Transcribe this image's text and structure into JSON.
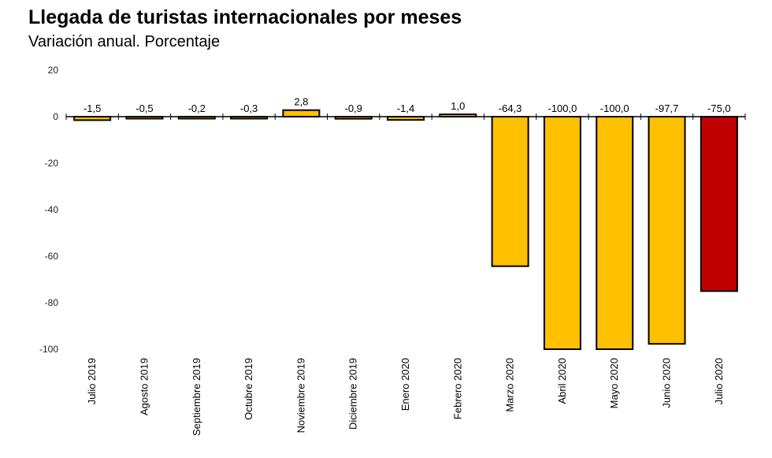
{
  "chart_data": {
    "type": "bar",
    "title": "Llegada de turistas internacionales por meses",
    "subtitle": "Variación anual. Porcentaje",
    "categories": [
      "Julio 2019",
      "Agosto 2019",
      "Septiembre 2019",
      "Octubre 2019",
      "Noviembre 2019",
      "Diciembre 2019",
      "Enero 2020",
      "Febrero 2020",
      "Marzo 2020",
      "Abril 2020",
      "Mayo 2020",
      "Junio 2020",
      "Julio 2020"
    ],
    "values": [
      -1.5,
      -0.5,
      -0.2,
      -0.3,
      2.8,
      -0.9,
      -1.4,
      1.0,
      -64.3,
      -100.0,
      -100.0,
      -97.7,
      -75.0
    ],
    "data_labels": [
      "-1,5",
      "-0,5",
      "-0,2",
      "-0,3",
      "2,8",
      "-0,9",
      "-1,4",
      "1,0",
      "-64,3",
      "-100,0",
      "-100,0",
      "-97,7",
      "-75,0"
    ],
    "ylim": [
      -100,
      20
    ],
    "yticks": [
      20,
      0,
      -20,
      -40,
      -60,
      -80,
      -100
    ],
    "ytick_labels": [
      "20",
      "0",
      "-20",
      "-40",
      "-60",
      "-80",
      "-100"
    ],
    "grid": false,
    "colors": {
      "bar_default": "#ffc000",
      "bar_highlight": "#c00000",
      "bar_outline": "#000000"
    },
    "highlight_index": 12
  }
}
